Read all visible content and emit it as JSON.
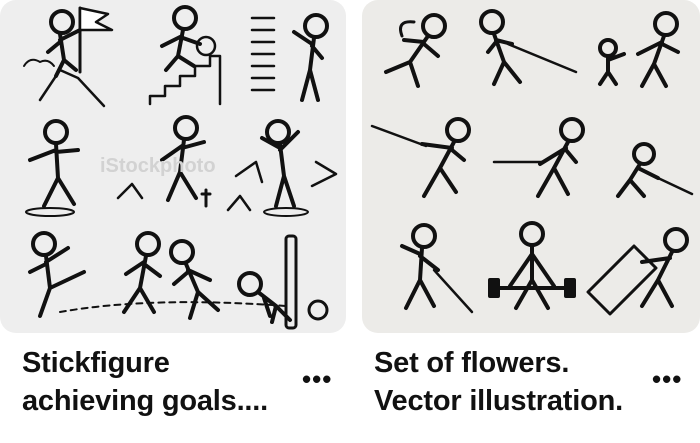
{
  "results": [
    {
      "caption_line1": "Stickfigure",
      "caption_line2": "achieving goals....",
      "more_label": "•••",
      "watermark_text": "iStockphoto",
      "colors": {
        "thumb_bg": "#eeeeee",
        "ink": "#111111"
      }
    },
    {
      "caption_line1": "Set of flowers.",
      "caption_line2": "Vector illustration.",
      "more_label": "•••",
      "colors": {
        "thumb_bg": "#ecebe8",
        "ink": "#111111"
      }
    }
  ]
}
